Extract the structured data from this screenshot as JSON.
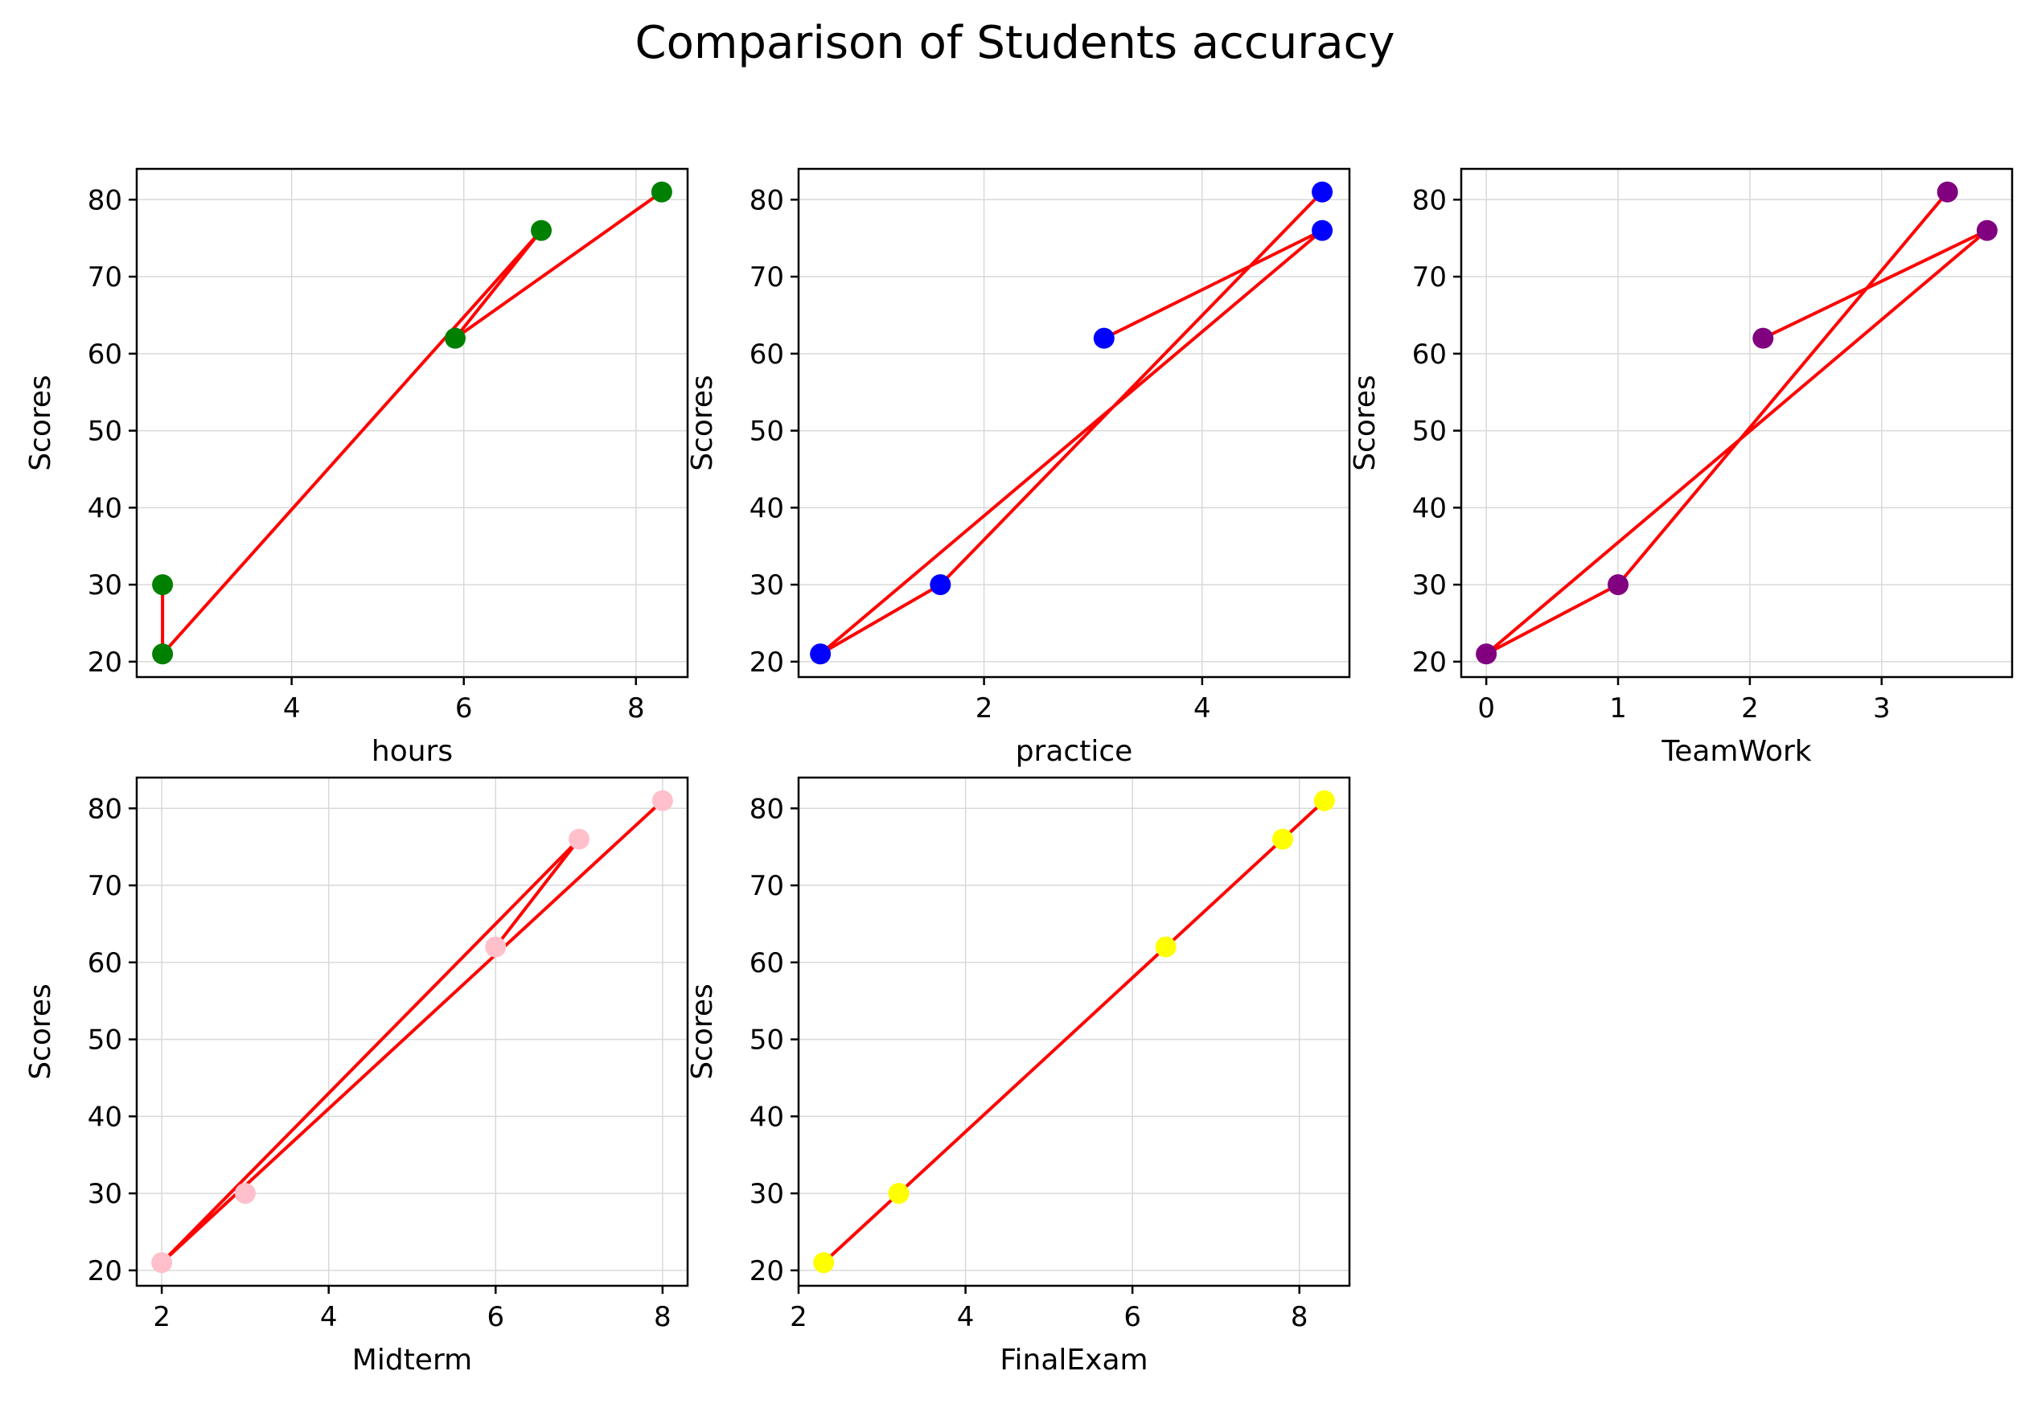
{
  "figure": {
    "title": "Comparison of Students accuracy"
  },
  "chart_data": [
    {
      "type": "scatter",
      "xlabel": "hours",
      "ylabel": "Scores",
      "x": [
        2.5,
        2.5,
        5.9,
        6.9,
        8.3
      ],
      "y": [
        30,
        21,
        62,
        76,
        81
      ],
      "line_order": [
        0,
        1,
        3,
        2,
        4
      ],
      "xlim": [
        2.2,
        8.6
      ],
      "ylim": [
        18,
        84
      ],
      "xticks": [
        4,
        6,
        8
      ],
      "yticks": [
        20,
        30,
        40,
        50,
        60,
        70,
        80
      ],
      "marker_color": "#008000",
      "line_color": "#ff0000",
      "grid": true
    },
    {
      "type": "scatter",
      "xlabel": "practice",
      "ylabel": "Scores",
      "x": [
        0.5,
        1.6,
        3.1,
        5.1,
        5.1
      ],
      "y": [
        21,
        30,
        62,
        76,
        81
      ],
      "line_order": [
        4,
        1,
        0,
        3,
        2
      ],
      "xlim": [
        0.3,
        5.35
      ],
      "ylim": [
        18,
        84
      ],
      "xticks": [
        2,
        4
      ],
      "yticks": [
        20,
        30,
        40,
        50,
        60,
        70,
        80
      ],
      "marker_color": "#0000ff",
      "line_color": "#ff0000",
      "grid": true
    },
    {
      "type": "scatter",
      "xlabel": "TeamWork",
      "ylabel": "Scores",
      "x": [
        0,
        1,
        2.1,
        3.8,
        3.5
      ],
      "y": [
        21,
        30,
        62,
        76,
        81
      ],
      "line_order": [
        2,
        3,
        0,
        1,
        4
      ],
      "xlim": [
        -0.19,
        3.99
      ],
      "ylim": [
        18,
        84
      ],
      "xticks": [
        0,
        1,
        2,
        3
      ],
      "yticks": [
        20,
        30,
        40,
        50,
        60,
        70,
        80
      ],
      "marker_color": "#800080",
      "line_color": "#ff0000",
      "grid": true
    },
    {
      "type": "scatter",
      "xlabel": "Midterm",
      "ylabel": "Scores",
      "x": [
        2,
        3,
        6,
        7,
        8
      ],
      "y": [
        21,
        30,
        62,
        76,
        81
      ],
      "line_order": [
        2,
        3,
        0,
        4
      ],
      "xlim": [
        1.7,
        8.3
      ],
      "ylim": [
        18,
        84
      ],
      "xticks": [
        2,
        4,
        6,
        8
      ],
      "yticks": [
        20,
        30,
        40,
        50,
        60,
        70,
        80
      ],
      "marker_color": "#ffc0cb",
      "line_color": "#ff0000",
      "grid": true
    },
    {
      "type": "scatter",
      "xlabel": "FinalExam",
      "ylabel": "Scores",
      "x": [
        2.3,
        3.2,
        6.4,
        7.8,
        8.3
      ],
      "y": [
        21,
        30,
        62,
        76,
        81
      ],
      "line_order": [
        0,
        4
      ],
      "xlim": [
        2.0,
        8.6
      ],
      "ylim": [
        18,
        84
      ],
      "xticks": [
        2,
        4,
        6,
        8
      ],
      "yticks": [
        20,
        30,
        40,
        50,
        60,
        70,
        80
      ],
      "marker_color": "#ffff00",
      "line_color": "#ff0000",
      "grid": true
    }
  ]
}
